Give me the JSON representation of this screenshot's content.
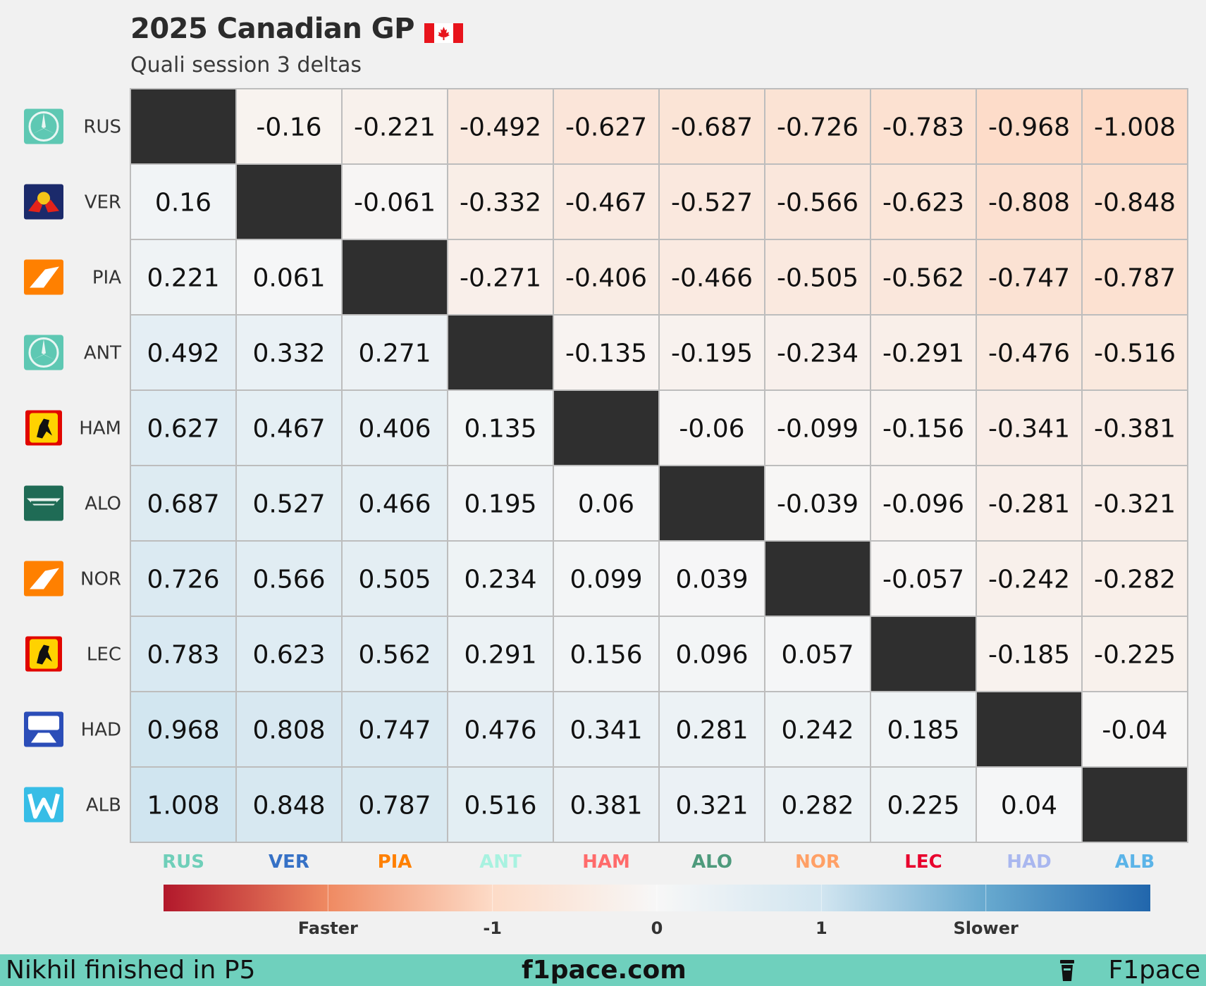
{
  "header": {
    "title": "2025 Canadian GP",
    "subtitle": "Quali session 3 deltas"
  },
  "colors": {
    "flag_red": "#e8141c",
    "cell_border": "#bdbdbd",
    "diagonal": "#2f2f2f",
    "footer_bg": "#6fd0bd"
  },
  "chart_data": {
    "type": "heatmap",
    "title": "2025 Canadian GP",
    "subtitle": "Quali session 3 deltas",
    "rows": [
      "RUS",
      "VER",
      "PIA",
      "ANT",
      "HAM",
      "ALO",
      "NOR",
      "LEC",
      "HAD",
      "ALB"
    ],
    "columns": [
      "RUS",
      "VER",
      "PIA",
      "ANT",
      "HAM",
      "ALO",
      "NOR",
      "LEC",
      "HAD",
      "ALB"
    ],
    "row_icons": [
      "mercedes-logo-icon",
      "red-bull-logo-icon",
      "mclaren-logo-icon",
      "mercedes-logo-icon",
      "ferrari-logo-icon",
      "aston-martin-logo-icon",
      "mclaren-logo-icon",
      "ferrari-logo-icon",
      "racing-bulls-logo-icon",
      "williams-logo-icon"
    ],
    "column_colors": [
      "#6fcfb9",
      "#3671c6",
      "#ff8000",
      "#a8f2e0",
      "#ff6b6b",
      "#4e9a7c",
      "#ffa066",
      "#e8002d",
      "#a9b7ef",
      "#5bb4e8"
    ],
    "values": [
      [
        null,
        -0.16,
        -0.221,
        -0.492,
        -0.627,
        -0.687,
        -0.726,
        -0.783,
        -0.968,
        -1.008
      ],
      [
        0.16,
        null,
        -0.061,
        -0.332,
        -0.467,
        -0.527,
        -0.566,
        -0.623,
        -0.808,
        -0.848
      ],
      [
        0.221,
        0.061,
        null,
        -0.271,
        -0.406,
        -0.466,
        -0.505,
        -0.562,
        -0.747,
        -0.787
      ],
      [
        0.492,
        0.332,
        0.271,
        null,
        -0.135,
        -0.195,
        -0.234,
        -0.291,
        -0.476,
        -0.516
      ],
      [
        0.627,
        0.467,
        0.406,
        0.135,
        null,
        -0.06,
        -0.099,
        -0.156,
        -0.341,
        -0.381
      ],
      [
        0.687,
        0.527,
        0.466,
        0.195,
        0.06,
        null,
        -0.039,
        -0.096,
        -0.281,
        -0.321
      ],
      [
        0.726,
        0.566,
        0.505,
        0.234,
        0.099,
        0.039,
        null,
        -0.057,
        -0.242,
        -0.282
      ],
      [
        0.783,
        0.623,
        0.562,
        0.291,
        0.156,
        0.096,
        0.057,
        null,
        -0.185,
        -0.225
      ],
      [
        0.968,
        0.808,
        0.747,
        0.476,
        0.341,
        0.281,
        0.242,
        0.185,
        null,
        -0.04
      ],
      [
        1.008,
        0.848,
        0.787,
        0.516,
        0.381,
        0.321,
        0.282,
        0.225,
        0.04,
        null
      ]
    ],
    "colorbar": {
      "range": [
        -3,
        3
      ],
      "ticks": [
        -2,
        -1,
        0,
        1,
        2
      ],
      "tick_labels": [
        "Faster",
        "-1",
        "0",
        "1",
        "Slower"
      ],
      "colors": [
        "#b2182b",
        "#ef8a62",
        "#fddbc7",
        "#f7f7f7",
        "#d1e5f0",
        "#67a9cf",
        "#2166ac"
      ]
    }
  },
  "footer": {
    "left": "Nikhil finished in P5",
    "center": "f1pace.com",
    "right": "F1pace"
  }
}
